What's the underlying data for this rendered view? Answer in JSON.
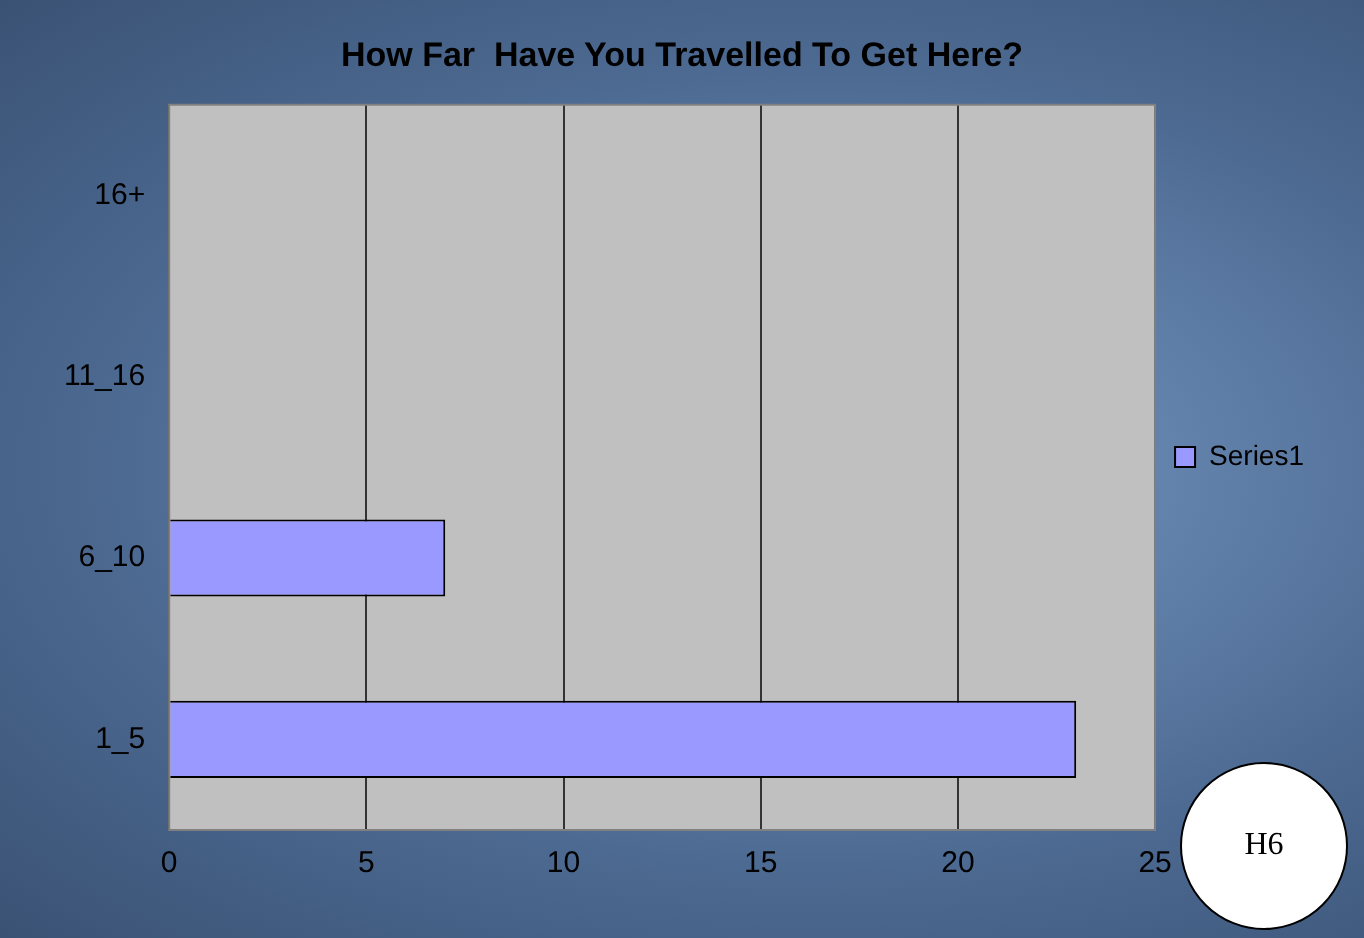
{
  "chart_data": {
    "type": "bar",
    "orientation": "horizontal",
    "title": "How Far  Have You Travelled To Get Here?",
    "categories": [
      "16+",
      "11_16",
      "6_10",
      "1_5"
    ],
    "series": [
      {
        "name": "Series1",
        "color": "#9999ff",
        "values": [
          0,
          0,
          7,
          23
        ]
      }
    ],
    "xlim": [
      0,
      25
    ],
    "xticks": [
      0,
      5,
      10,
      15,
      20,
      25
    ],
    "grid": "x",
    "legend": "right",
    "annotations": [
      "H6"
    ]
  }
}
